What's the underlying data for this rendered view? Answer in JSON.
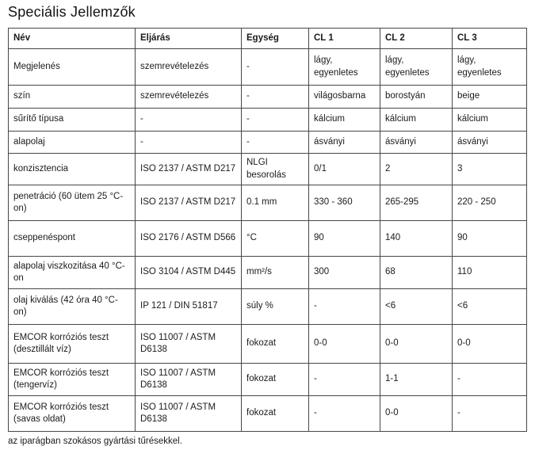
{
  "page": {
    "title": "Speciális Jellemzők",
    "footnote": "az iparágban szokásos gyártási tűrésekkel."
  },
  "colors": {
    "background": "#ffffff",
    "text": "#1b1b1b",
    "table_border": "#474747"
  },
  "table": {
    "columns": [
      {
        "key": "nev",
        "label": "Név"
      },
      {
        "key": "eljaras",
        "label": "Eljárás"
      },
      {
        "key": "egyseg",
        "label": "Egység"
      },
      {
        "key": "cl1",
        "label": "CL 1"
      },
      {
        "key": "cl2",
        "label": "CL 2"
      },
      {
        "key": "cl3",
        "label": "CL 3"
      }
    ],
    "rows": [
      {
        "cells": [
          "Megjelenés",
          "szemrevételezés",
          "-",
          "lágy, egyenletes",
          "lágy, egyenletes",
          "lágy, egyenletes"
        ]
      },
      {
        "cells": [
          "szín",
          "szemrevételezés",
          "-",
          "világosbarna",
          "borostyán",
          "beige"
        ]
      },
      {
        "cells": [
          "sűrítő típusa",
          "-",
          "-",
          "kálcium",
          "kálcium",
          "kálcium"
        ]
      },
      {
        "cells": [
          "alapolaj",
          "-",
          "-",
          "ásványi",
          "ásványi",
          "ásványi"
        ]
      },
      {
        "cells": [
          "konzisztencia",
          "ISO 2137 / ASTM D217",
          "NLGI besorolás",
          "0/1",
          "2",
          "3"
        ]
      },
      {
        "cells": [
          "penetráció (60 ütem 25 °C-on)",
          "ISO 2137 / ASTM D217",
          "0.1 mm",
          "330 - 360",
          "265-295",
          "220 - 250"
        ]
      },
      {
        "cells": [
          "cseppenéspont",
          "ISO 2176 / ASTM D566",
          "°C",
          "90",
          "140",
          "90"
        ]
      },
      {
        "cells": [
          "alapolaj viszkozitása 40 °C-on",
          "ISO 3104 / ASTM D445",
          "mm²/s",
          "300",
          "68",
          "110"
        ]
      },
      {
        "cells": [
          "olaj kiválás (42 óra 40 °C-on)",
          "IP 121 / DIN 51817",
          "súly %",
          "-",
          "<6",
          "<6"
        ]
      },
      {
        "cells": [
          "EMCOR korróziós teszt (desztillált víz)",
          "ISO 11007 / ASTM D6138",
          "fokozat",
          "0-0",
          "0-0",
          "0-0"
        ]
      },
      {
        "cells": [
          "EMCOR korróziós teszt (tengervíz)",
          "ISO 11007 / ASTM D6138",
          "fokozat",
          "-",
          "1-1",
          "-"
        ]
      },
      {
        "cells": [
          "EMCOR korróziós teszt (savas oldat)",
          "ISO 11007 / ASTM D6138",
          "fokozat",
          "-",
          "0-0",
          "-"
        ]
      }
    ]
  }
}
